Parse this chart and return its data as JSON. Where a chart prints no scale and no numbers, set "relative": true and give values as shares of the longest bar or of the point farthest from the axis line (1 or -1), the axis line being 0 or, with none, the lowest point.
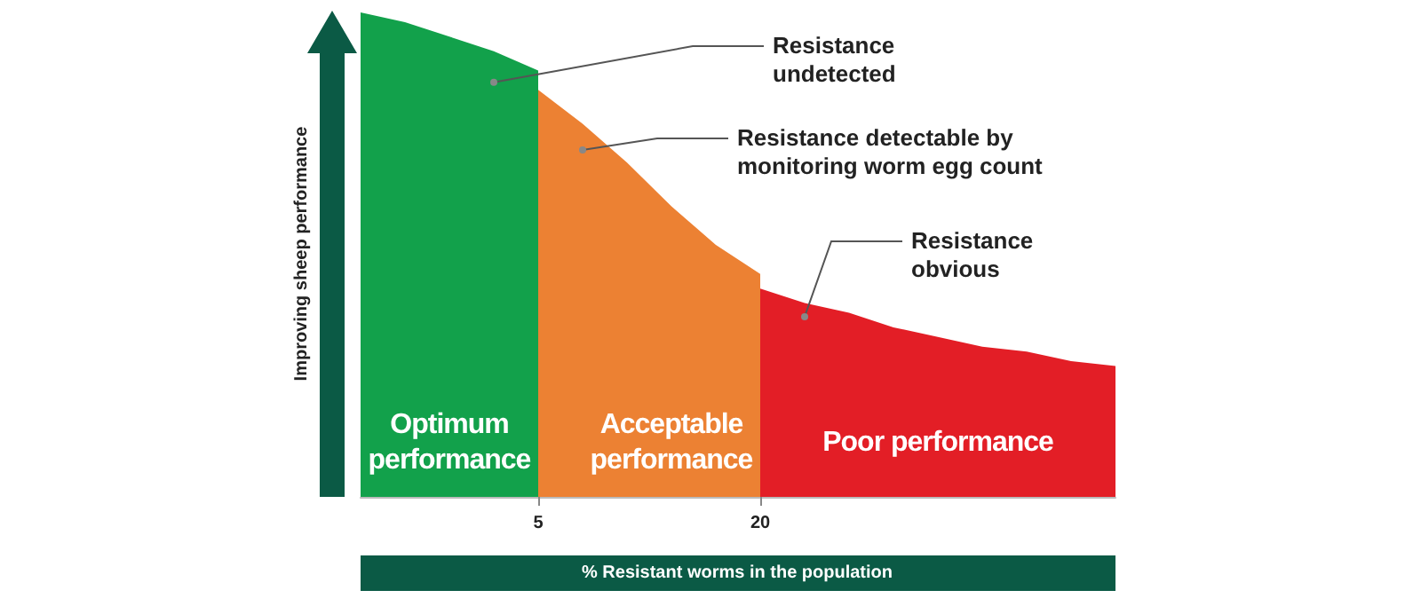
{
  "chart_data": {
    "type": "area",
    "relative": true,
    "xlabel": "% Resistant worms in the population",
    "ylabel": "Improving sheep performance",
    "categories": [
      null,
      null,
      null,
      null,
      "5",
      null,
      null,
      null,
      null,
      "20",
      null,
      null,
      null,
      null,
      null,
      null,
      null,
      null
    ],
    "series": [
      {
        "name": "Optimum performance",
        "color": "#12a14b",
        "values": [
          1.0,
          0.98,
          0.95,
          0.92,
          0.88,
          null,
          null,
          null,
          null,
          null,
          null,
          null,
          null,
          null,
          null,
          null,
          null,
          null
        ]
      },
      {
        "name": "Acceptable performance",
        "color": "#ec8133",
        "values": [
          null,
          null,
          null,
          null,
          0.84,
          0.77,
          0.69,
          0.6,
          0.52,
          0.46,
          null,
          null,
          null,
          null,
          null,
          null,
          null,
          null
        ]
      },
      {
        "name": "Poor performance",
        "color": "#e31e26",
        "values": [
          null,
          null,
          null,
          null,
          null,
          null,
          null,
          null,
          null,
          0.43,
          0.4,
          0.38,
          0.35,
          0.33,
          0.31,
          0.3,
          0.28,
          0.27
        ]
      }
    ],
    "annotations": [
      "Resistance undetected",
      "Resistance detectable by monitoring worm egg count",
      "Resistance obvious"
    ],
    "legend": false
  }
}
